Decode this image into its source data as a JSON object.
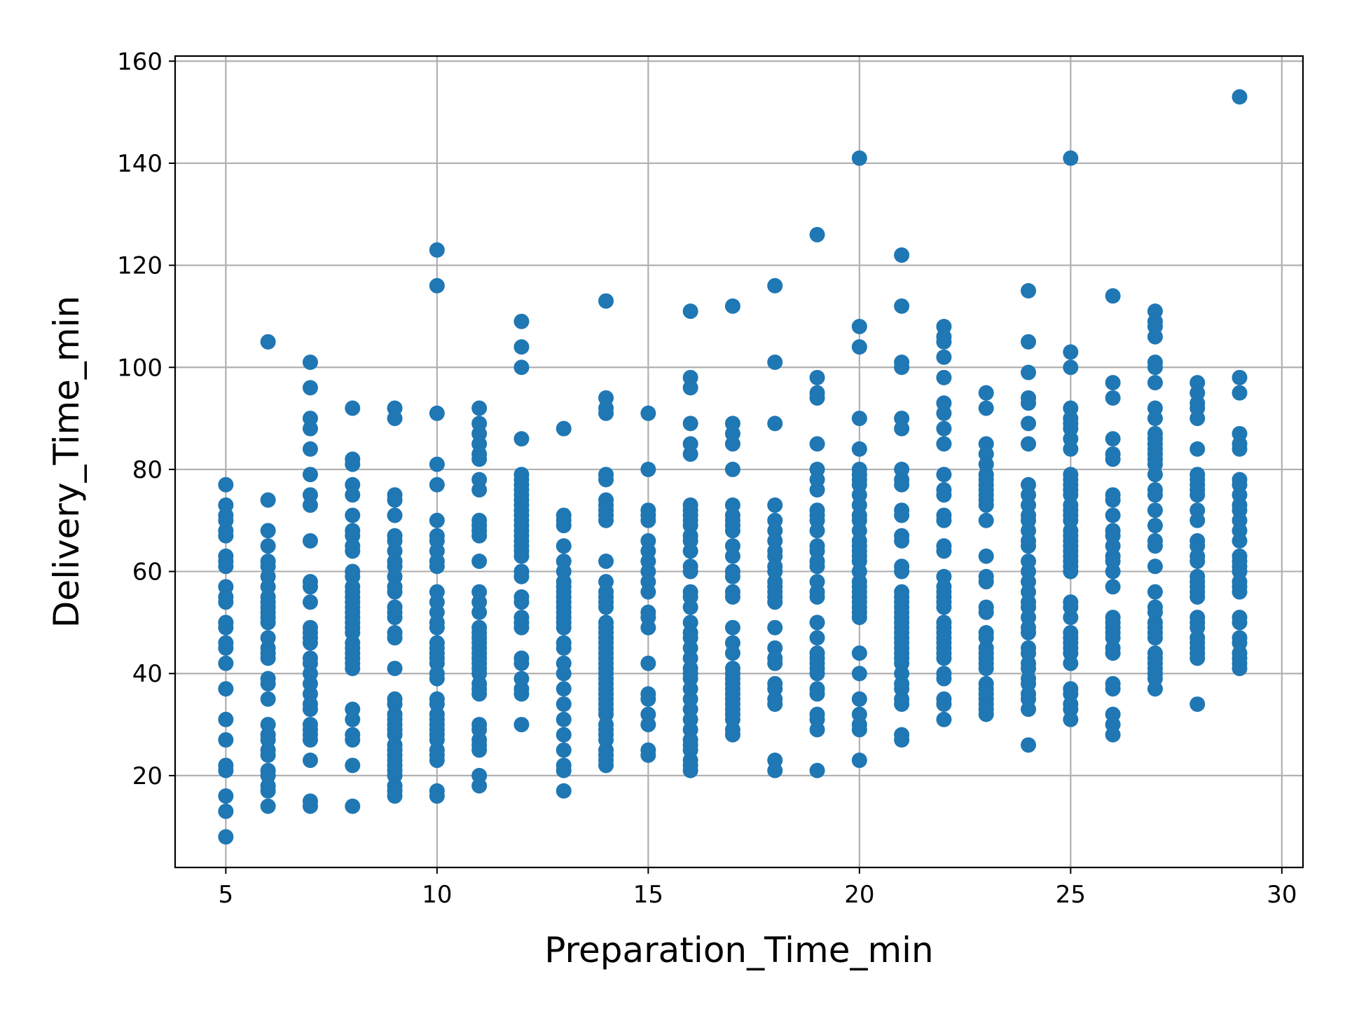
{
  "chart_data": {
    "type": "scatter",
    "title": "",
    "xlabel": "Preparation_Time_min",
    "ylabel": "Delivery_Time_min",
    "xlim": [
      3.8,
      30.5
    ],
    "ylim": [
      2,
      161
    ],
    "xticks": [
      5,
      10,
      15,
      20,
      25,
      30
    ],
    "yticks": [
      20,
      40,
      60,
      80,
      100,
      120,
      140,
      160
    ],
    "grid": true,
    "marker_color": "#1f77b4",
    "series": [
      {
        "points": {
          "5": [
            77,
            73,
            71,
            70,
            68,
            67,
            63,
            62,
            61,
            57,
            55,
            54,
            50,
            49,
            46,
            45,
            42,
            37,
            31,
            27,
            22,
            21,
            16,
            13,
            8
          ],
          "6": [
            105,
            74,
            68,
            65,
            62,
            61,
            59,
            57,
            55,
            54,
            53,
            52,
            51,
            50,
            47,
            45,
            44,
            43,
            39,
            38,
            35,
            30,
            28,
            27,
            25,
            24,
            21,
            20,
            18,
            17,
            14
          ],
          "7": [
            101,
            96,
            90,
            88,
            84,
            79,
            75,
            73,
            66,
            58,
            57,
            54,
            49,
            48,
            47,
            46,
            43,
            42,
            40,
            38,
            36,
            34,
            33,
            30,
            29,
            28,
            27,
            23,
            15,
            14
          ],
          "8": [
            92,
            82,
            81,
            77,
            75,
            71,
            68,
            67,
            65,
            64,
            60,
            59,
            57,
            56,
            55,
            54,
            53,
            52,
            51,
            50,
            49,
            48,
            46,
            45,
            44,
            43,
            42,
            41,
            33,
            31,
            28,
            27,
            22,
            14
          ],
          "9": [
            92,
            90,
            75,
            74,
            71,
            67,
            66,
            64,
            62,
            61,
            59,
            57,
            56,
            53,
            52,
            51,
            48,
            47,
            41,
            35,
            34,
            32,
            31,
            30,
            29,
            28,
            26,
            25,
            24,
            23,
            22,
            21,
            20,
            18,
            17,
            16
          ],
          "10": [
            123,
            116,
            91,
            81,
            77,
            70,
            67,
            66,
            64,
            62,
            61,
            56,
            54,
            52,
            50,
            49,
            46,
            45,
            44,
            43,
            42,
            40,
            39,
            35,
            34,
            32,
            31,
            30,
            29,
            28,
            27,
            25,
            24,
            23,
            17,
            16
          ],
          "11": [
            92,
            89,
            87,
            85,
            83,
            82,
            78,
            76,
            70,
            69,
            68,
            67,
            62,
            56,
            54,
            52,
            49,
            48,
            47,
            46,
            45,
            44,
            43,
            42,
            41,
            40,
            38,
            37,
            36,
            30,
            29,
            27,
            26,
            25,
            20,
            18
          ],
          "12": [
            109,
            104,
            100,
            86,
            79,
            78,
            77,
            76,
            75,
            74,
            73,
            72,
            71,
            70,
            69,
            68,
            67,
            66,
            65,
            64,
            63,
            60,
            59,
            55,
            54,
            51,
            50,
            49,
            43,
            42,
            39,
            37,
            36,
            30
          ],
          "13": [
            88,
            71,
            70,
            69,
            65,
            62,
            60,
            58,
            57,
            56,
            55,
            54,
            53,
            52,
            51,
            50,
            49,
            46,
            45,
            42,
            40,
            37,
            34,
            31,
            28,
            25,
            22,
            21,
            17
          ],
          "14": [
            113,
            94,
            92,
            91,
            79,
            78,
            74,
            73,
            72,
            71,
            70,
            62,
            58,
            56,
            55,
            54,
            53,
            50,
            49,
            48,
            47,
            46,
            45,
            44,
            43,
            42,
            41,
            40,
            39,
            38,
            37,
            36,
            35,
            34,
            33,
            32,
            30,
            29,
            28,
            27,
            25,
            24,
            23,
            22
          ],
          "15": [
            91,
            80,
            72,
            71,
            70,
            66,
            64,
            62,
            60,
            58,
            56,
            52,
            51,
            49,
            42,
            36,
            35,
            32,
            30,
            25,
            24
          ],
          "16": [
            111,
            98,
            96,
            89,
            85,
            83,
            73,
            72,
            71,
            70,
            69,
            67,
            66,
            64,
            61,
            60,
            56,
            55,
            53,
            50,
            48,
            47,
            45,
            43,
            41,
            40,
            39,
            37,
            35,
            33,
            31,
            29,
            27,
            26,
            25,
            23,
            22,
            21
          ],
          "17": [
            112,
            89,
            87,
            85,
            80,
            73,
            71,
            70,
            69,
            68,
            65,
            63,
            60,
            59,
            56,
            55,
            49,
            46,
            44,
            41,
            40,
            39,
            38,
            37,
            36,
            35,
            34,
            33,
            32,
            31,
            29,
            28
          ],
          "18": [
            116,
            101,
            89,
            73,
            70,
            68,
            66,
            64,
            63,
            61,
            60,
            58,
            57,
            56,
            55,
            54,
            49,
            45,
            43,
            42,
            38,
            37,
            35,
            34,
            23,
            21
          ],
          "19": [
            126,
            98,
            95,
            94,
            85,
            80,
            78,
            76,
            72,
            71,
            70,
            68,
            65,
            64,
            62,
            61,
            58,
            56,
            55,
            50,
            47,
            44,
            43,
            42,
            41,
            40,
            37,
            36,
            32,
            31,
            29,
            21
          ],
          "20": [
            141,
            108,
            104,
            90,
            84,
            80,
            79,
            78,
            77,
            75,
            73,
            71,
            70,
            68,
            66,
            65,
            64,
            63,
            62,
            60,
            58,
            57,
            56,
            55,
            54,
            53,
            52,
            51,
            44,
            40,
            35,
            32,
            30,
            29,
            23
          ],
          "21": [
            122,
            112,
            101,
            100,
            90,
            88,
            80,
            78,
            77,
            72,
            71,
            67,
            66,
            61,
            60,
            56,
            55,
            54,
            53,
            52,
            51,
            50,
            49,
            48,
            47,
            46,
            45,
            44,
            43,
            42,
            40,
            38,
            37,
            35,
            34,
            28,
            27
          ],
          "22": [
            108,
            106,
            105,
            102,
            98,
            93,
            91,
            88,
            85,
            79,
            76,
            75,
            71,
            70,
            65,
            64,
            59,
            57,
            56,
            55,
            54,
            53,
            50,
            49,
            48,
            47,
            46,
            45,
            44,
            43,
            40,
            39,
            35,
            34,
            31
          ],
          "23": [
            95,
            92,
            85,
            83,
            81,
            79,
            78,
            77,
            76,
            75,
            74,
            73,
            70,
            63,
            59,
            58,
            53,
            52,
            48,
            47,
            45,
            44,
            43,
            42,
            41,
            38,
            37,
            36,
            35,
            34,
            33,
            32
          ],
          "24": [
            115,
            105,
            99,
            94,
            93,
            89,
            85,
            77,
            75,
            73,
            71,
            70,
            68,
            66,
            65,
            62,
            60,
            58,
            56,
            54,
            53,
            51,
            49,
            48,
            45,
            44,
            42,
            41,
            39,
            38,
            36,
            35,
            33,
            26
          ],
          "25": [
            141,
            103,
            100,
            92,
            90,
            89,
            88,
            86,
            84,
            79,
            78,
            77,
            76,
            75,
            73,
            72,
            71,
            70,
            68,
            67,
            66,
            65,
            64,
            63,
            62,
            61,
            60,
            54,
            53,
            51,
            48,
            47,
            46,
            45,
            44,
            42,
            37,
            36,
            34,
            33,
            31
          ],
          "26": [
            114,
            97,
            94,
            86,
            83,
            82,
            75,
            74,
            71,
            68,
            67,
            65,
            63,
            62,
            60,
            57,
            51,
            50,
            49,
            48,
            47,
            45,
            44,
            38,
            37,
            32,
            30,
            28
          ],
          "27": [
            111,
            109,
            108,
            106,
            101,
            100,
            97,
            92,
            90,
            87,
            86,
            85,
            84,
            83,
            82,
            81,
            79,
            76,
            75,
            72,
            69,
            66,
            65,
            61,
            56,
            53,
            52,
            50,
            49,
            48,
            47,
            44,
            43,
            42,
            41,
            40,
            39,
            37
          ],
          "28": [
            97,
            95,
            93,
            92,
            90,
            84,
            79,
            78,
            77,
            76,
            75,
            72,
            70,
            66,
            65,
            63,
            62,
            59,
            58,
            57,
            56,
            55,
            51,
            50,
            49,
            47,
            46,
            45,
            44,
            43,
            34
          ],
          "29": [
            153,
            98,
            95,
            87,
            85,
            84,
            78,
            77,
            75,
            73,
            72,
            70,
            68,
            66,
            63,
            62,
            61,
            60,
            58,
            57,
            56,
            51,
            50,
            47,
            46,
            44,
            43,
            42,
            41
          ]
        }
      }
    ]
  }
}
